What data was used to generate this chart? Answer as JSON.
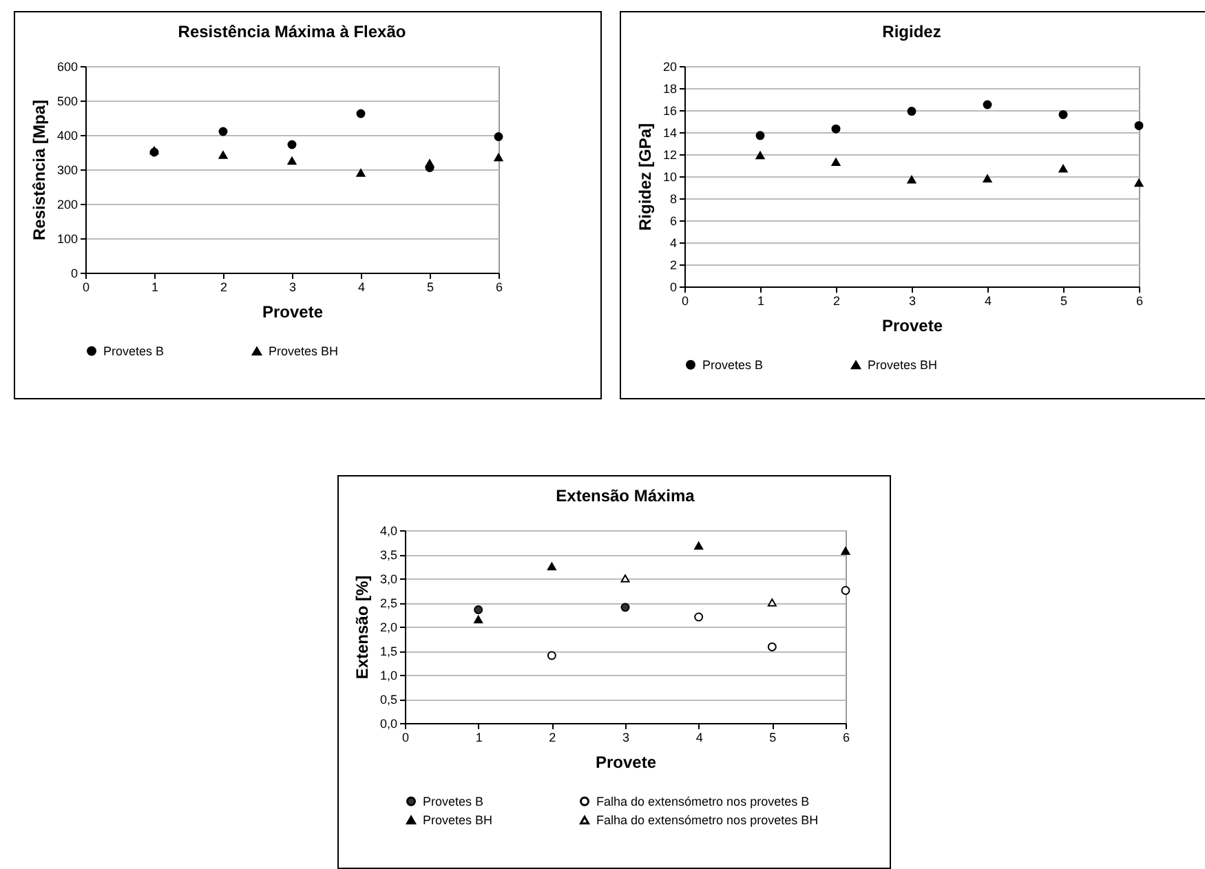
{
  "chart_data": [
    {
      "type": "scatter",
      "title": "Resistência Máxima à Flexão",
      "xlabel": "Provete",
      "ylabel": "Resistência [Mpa]",
      "xlim": [
        0,
        6
      ],
      "xticks": [
        0,
        1,
        2,
        3,
        4,
        5,
        6
      ],
      "ylim": [
        0,
        600
      ],
      "yticks": [
        0,
        100,
        200,
        300,
        400,
        500,
        600
      ],
      "grid": "y",
      "legend": "bottom",
      "series": [
        {
          "name": "Provetes B",
          "color": "#000000",
          "marker": "circle",
          "x": [
            1,
            2,
            3,
            4,
            5,
            6
          ],
          "values": [
            350,
            410,
            372,
            462,
            305,
            395
          ]
        },
        {
          "name": "Provetes BH",
          "color": "#000000",
          "marker": "triangle",
          "x": [
            1,
            2,
            3,
            4,
            5,
            6
          ],
          "values": [
            355,
            342,
            325,
            290,
            318,
            335
          ]
        }
      ]
    },
    {
      "type": "scatter",
      "title": "Rigidez",
      "xlabel": "Provete",
      "ylabel": "Rigidez [GPa]",
      "xlim": [
        0,
        6
      ],
      "xticks": [
        0,
        1,
        2,
        3,
        4,
        5,
        6
      ],
      "ylim": [
        0,
        20
      ],
      "yticks": [
        0,
        2,
        4,
        6,
        8,
        10,
        12,
        14,
        16,
        18,
        20
      ],
      "grid": "y",
      "legend": "bottom",
      "series": [
        {
          "name": "Provetes B",
          "color": "#000000",
          "marker": "circle",
          "x": [
            1,
            2,
            3,
            4,
            5,
            6
          ],
          "values": [
            13.7,
            14.3,
            15.9,
            16.5,
            15.6,
            14.6
          ]
        },
        {
          "name": "Provetes BH",
          "color": "#000000",
          "marker": "triangle",
          "x": [
            1,
            2,
            3,
            4,
            5,
            6
          ],
          "values": [
            11.9,
            11.3,
            9.7,
            9.8,
            10.7,
            9.4
          ]
        }
      ]
    },
    {
      "type": "scatter",
      "title": "Extensão Máxima",
      "xlabel": "Provete",
      "ylabel": "Extensão [%]",
      "xlim": [
        0,
        6
      ],
      "xticks": [
        0,
        1,
        2,
        3,
        4,
        5,
        6
      ],
      "ylim": [
        0,
        4
      ],
      "yticks": [
        {
          "value": 0,
          "label": "0,0"
        },
        {
          "value": 0.5,
          "label": "0,5"
        },
        {
          "value": 1,
          "label": "1,0"
        },
        {
          "value": 1.5,
          "label": "1,5"
        },
        {
          "value": 2,
          "label": "2,0"
        },
        {
          "value": 2.5,
          "label": "2,5"
        },
        {
          "value": 3,
          "label": "3,0"
        },
        {
          "value": 3.5,
          "label": "3,5"
        },
        {
          "value": 4,
          "label": "4,0"
        }
      ],
      "grid": "y",
      "legend": "bottom",
      "series": [
        {
          "name": "Provetes B",
          "color": "#333333",
          "marker": "circle",
          "x": [
            1,
            3
          ],
          "values": [
            2.35,
            2.4
          ]
        },
        {
          "name": "Provetes BH",
          "color": "#000000",
          "marker": "triangle",
          "x": [
            1,
            2,
            4,
            6
          ],
          "values": [
            2.15,
            3.25,
            3.68,
            3.57
          ]
        },
        {
          "name": "Falha do extensómetro nos provetes B",
          "color": "#ffffff",
          "marker": "circle",
          "x": [
            2,
            4,
            5,
            6
          ],
          "values": [
            1.4,
            2.2,
            1.58,
            2.75
          ]
        },
        {
          "name": "Falha do extensómetro nos provetes BH",
          "color": "#ffffff",
          "marker": "triangle",
          "x": [
            3,
            5
          ],
          "values": [
            3.0,
            2.5
          ]
        }
      ]
    }
  ]
}
